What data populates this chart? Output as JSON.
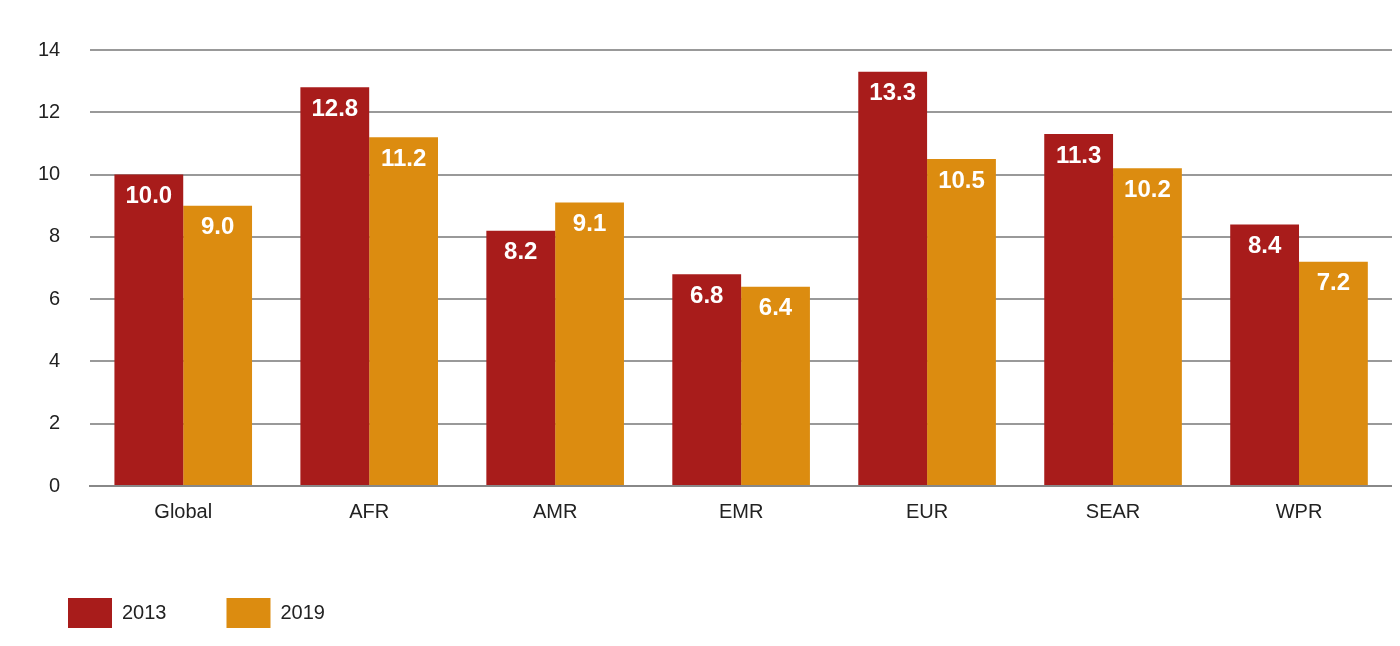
{
  "chart_data": {
    "type": "bar",
    "categories": [
      "Global",
      "AFR",
      "AMR",
      "EMR",
      "EUR",
      "SEAR",
      "WPR"
    ],
    "series": [
      {
        "name": "2013",
        "color": "#a81c1b",
        "values": [
          10.0,
          12.8,
          8.2,
          6.8,
          13.3,
          11.3,
          8.4
        ],
        "value_labels": [
          "10.0",
          "12.8",
          "8.2",
          "6.8",
          "13.3",
          "11.3",
          "8.4"
        ]
      },
      {
        "name": "2019",
        "color": "#dc8c10",
        "values": [
          9.0,
          11.2,
          9.1,
          6.4,
          10.5,
          10.2,
          7.2
        ],
        "value_labels": [
          "9.0",
          "11.2",
          "9.1",
          "6.4",
          "10.5",
          "10.2",
          "7.2"
        ]
      }
    ],
    "ylim": [
      0,
      14
    ],
    "yticks": [
      0,
      2,
      4,
      6,
      8,
      10,
      12,
      14
    ],
    "grid": "y",
    "legend": "bottom left"
  }
}
